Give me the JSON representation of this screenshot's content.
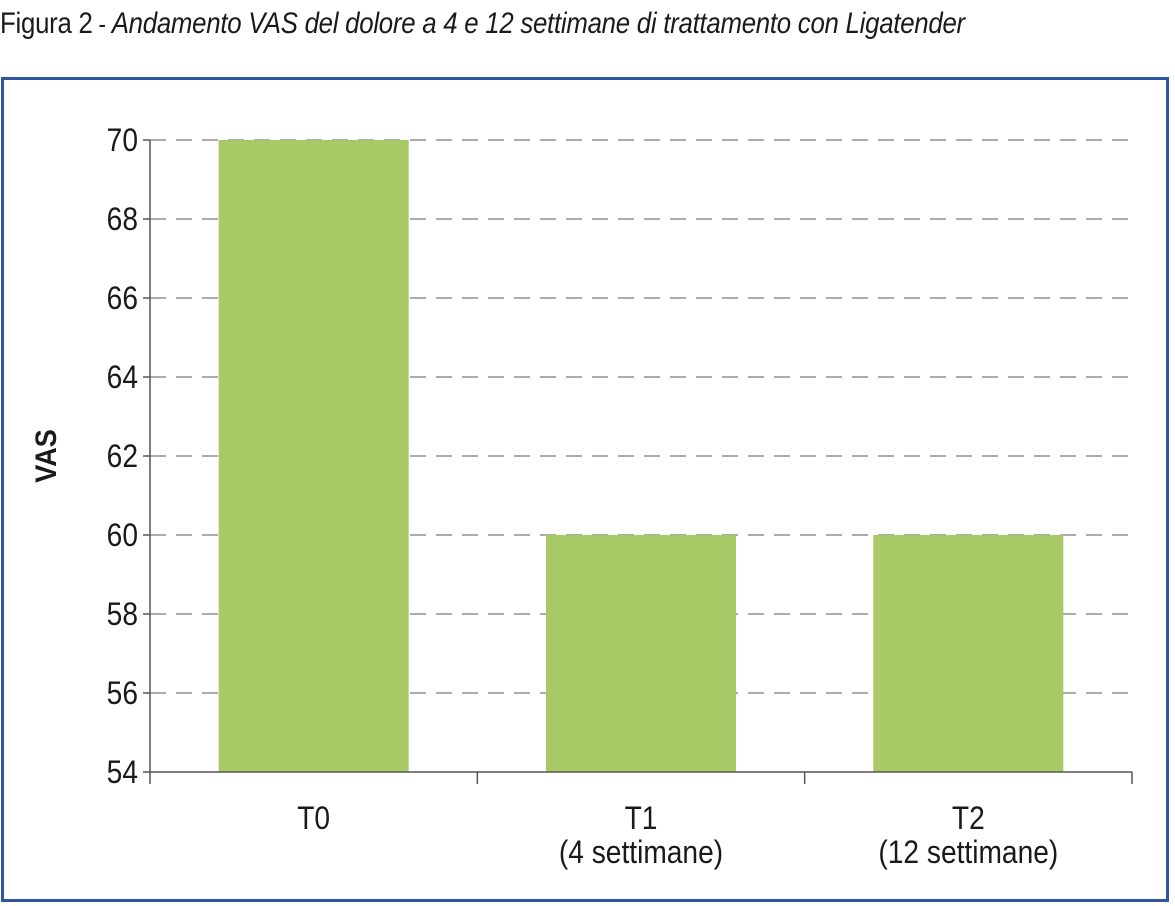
{
  "caption": {
    "figure_label": "Figura 2",
    "separator": " - ",
    "text": "Andamento VAS del dolore a 4 e 12 settimane di trattamento con Ligatender"
  },
  "colors": {
    "bar": "#a8ca66",
    "frame": "#2f57a0",
    "grid": "#7a7a7a",
    "axis": "#555555",
    "text": "#1a1a1a"
  },
  "chart_data": {
    "type": "bar",
    "title": "",
    "xlabel": "",
    "ylabel": "VAS",
    "categories": [
      [
        "T0"
      ],
      [
        "T1",
        "(4 settimane)"
      ],
      [
        "T2",
        "(12 settimane)"
      ]
    ],
    "values": [
      70,
      60,
      60
    ],
    "ylim": [
      54,
      70
    ],
    "yticks": [
      54,
      56,
      58,
      60,
      62,
      64,
      66,
      68,
      70
    ],
    "grid": true,
    "grid_style": "dashed",
    "legend": "none"
  }
}
